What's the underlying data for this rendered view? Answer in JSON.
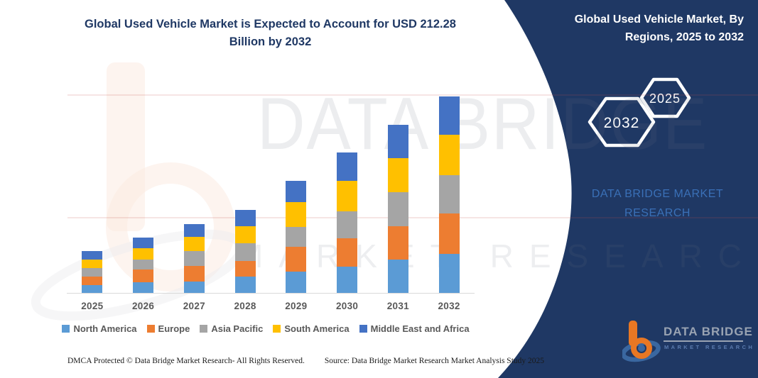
{
  "page_title": {
    "line1": "Global Used Vehicle Market is Expected to Account for USD 212.28",
    "line2": "Billion by 2032"
  },
  "right_panel": {
    "title_line1": "Global Used Vehicle Market, By",
    "title_line2": "Regions, 2025 to 2032",
    "hexagon_back": "2032",
    "hexagon_front": "2025",
    "brand_line1": "DATA BRIDGE MARKET",
    "brand_line2": "RESEARCH",
    "logo_name": "DATA BRIDGE",
    "logo_tagline": "MARKET RESEARCH"
  },
  "watermarks": {
    "big_text": "DATA BRIDGE",
    "spaced_text": "MARKET RESEARCH"
  },
  "footer": {
    "dmca": "DMCA Protected © Data Bridge Market Research-  All Rights Reserved.",
    "source": "Source: Data Bridge Market Research  Market Analysis Study 2025"
  },
  "colors": {
    "panel_navy": "#1F3864",
    "title_navy": "#1F3864",
    "axis_gray": "#D9D9D9",
    "label_gray": "#595959",
    "brand_blue": "#3A70B7",
    "logo_orange": "#E87723",
    "logo_blue": "#3A67A0"
  },
  "chart_data": {
    "type": "bar",
    "stacked": true,
    "title": "Global Used Vehicle Market is Expected to Account for USD 212.28 Billion by 2032",
    "unit": "USD Billion",
    "categories": [
      "2025",
      "2026",
      "2027",
      "2028",
      "2029",
      "2030",
      "2031",
      "2032"
    ],
    "series": [
      {
        "name": "North America",
        "color": "#5B9BD5",
        "values": [
          8.8,
          11.7,
          12.3,
          17.6,
          23.0,
          28.6,
          35.8,
          42.2
        ]
      },
      {
        "name": "Europe",
        "color": "#ED7D31",
        "values": [
          9.2,
          13.3,
          16.6,
          16.6,
          26.8,
          30.1,
          36.3,
          43.5
        ]
      },
      {
        "name": "Asia Pacific",
        "color": "#A5A5A5",
        "values": [
          8.7,
          10.7,
          16.1,
          19.2,
          21.7,
          29.4,
          36.6,
          41.7
        ]
      },
      {
        "name": "South America",
        "color": "#FFC000",
        "values": [
          9.0,
          12.3,
          15.3,
          18.6,
          26.8,
          32.8,
          36.6,
          43.2
        ]
      },
      {
        "name": "Middle East and Africa",
        "color": "#4472C4",
        "values": [
          9.2,
          11.5,
          13.8,
          17.6,
          23.0,
          30.5,
          36.6,
          41.68
        ]
      }
    ],
    "totals": [
      44.9,
      59.5,
      74.1,
      89.6,
      121.3,
      151.4,
      181.9,
      212.28
    ],
    "ylim": [
      0,
      212.28
    ],
    "grid": false,
    "legend_position": "bottom"
  }
}
